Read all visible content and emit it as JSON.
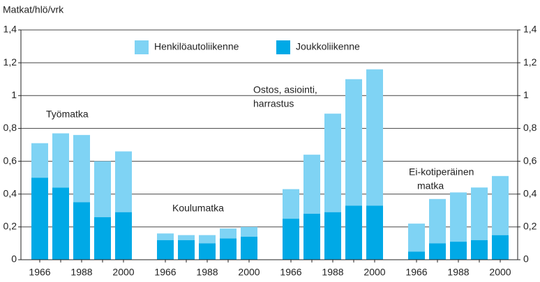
{
  "chart_data": {
    "type": "bar",
    "stacked": true,
    "ylabel": "Matkat/hlö/vrk",
    "categories": [
      "1966",
      null,
      "1988",
      null,
      "2000",
      "1966",
      null,
      "1988",
      null,
      "2000",
      "1966",
      null,
      "1988",
      null,
      "2000",
      "1966",
      null,
      "1988",
      null,
      "2000"
    ],
    "groups": [
      [
        "Työmatka"
      ],
      [
        "Koulumatka"
      ],
      [
        "Ostos, asiointi,",
        "harrastus"
      ],
      [
        "Ei-kotiperäinen",
        "matka"
      ]
    ],
    "series": [
      {
        "name": "Henkilöautoliikenne",
        "color": "#7fd3f4",
        "values": [
          0.21,
          0.33,
          0.41,
          0.34,
          0.37,
          0.04,
          0.03,
          0.05,
          0.06,
          0.06,
          0.18,
          0.36,
          0.6,
          0.77,
          0.83,
          0.17,
          0.27,
          0.3,
          0.32,
          0.36
        ]
      },
      {
        "name": "Joukkoliikenne",
        "color": "#00a9e6",
        "values": [
          0.5,
          0.44,
          0.35,
          0.26,
          0.29,
          0.12,
          0.12,
          0.1,
          0.13,
          0.14,
          0.25,
          0.28,
          0.29,
          0.33,
          0.33,
          0.05,
          0.1,
          0.11,
          0.12,
          0.15
        ]
      }
    ],
    "ylim": [
      0,
      1.4
    ],
    "yticks": [
      0,
      {
        "value": 0.2,
        "label": "0,2"
      },
      {
        "value": 0.4,
        "label": "0,4"
      },
      {
        "value": 0.6,
        "label": "0,6"
      },
      {
        "value": 0.8,
        "label": "0,8"
      },
      1,
      {
        "value": 1.2,
        "label": "1,2"
      },
      {
        "value": 1.4,
        "label": "1,4"
      }
    ],
    "grid": true,
    "legend": "top"
  }
}
